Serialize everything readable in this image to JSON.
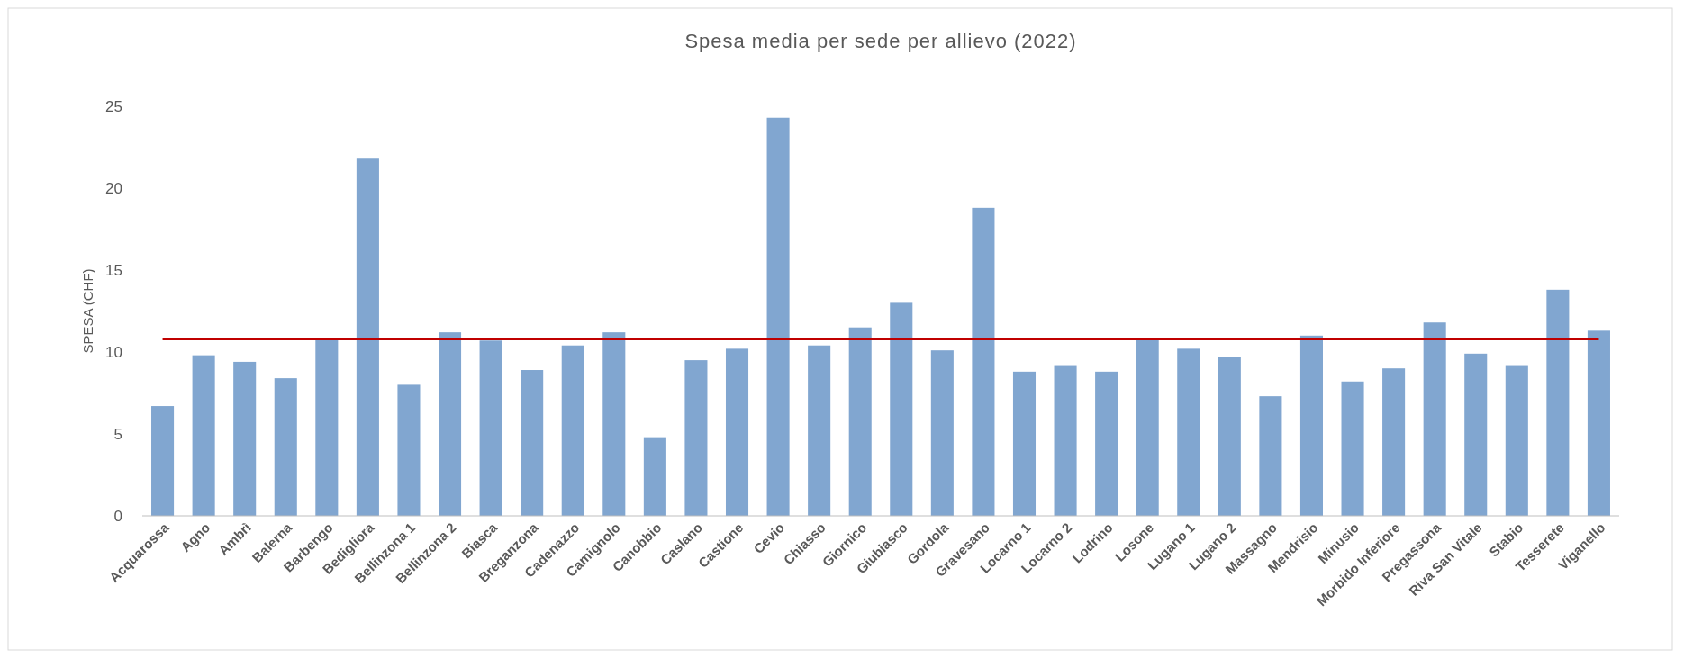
{
  "chart_data": {
    "type": "bar",
    "title": "Spesa media per sede per allievo (2022)",
    "ylabel": "SPESA (CHF)",
    "categories": [
      "Acquarossa",
      "Agno",
      "Ambrì",
      "Balerna",
      "Barbengo",
      "Bedigliora",
      "Bellinzona 1",
      "Bellinzona 2",
      "Biasca",
      "Breganzona",
      "Cadenazzo",
      "Camignolo",
      "Canobbio",
      "Caslano",
      "Castione",
      "Cevio",
      "Chiasso",
      "Giornico",
      "Giubiasco",
      "Gordola",
      "Gravesano",
      "Locarno 1",
      "Locarno 2",
      "Lodrino",
      "Losone",
      "Lugano 1",
      "Lugano 2",
      "Massagno",
      "Mendrisio",
      "Minusio",
      "Morbido Inferiore",
      "Pregassona",
      "Riva San Vitale",
      "Stabio",
      "Tesserete",
      "Viganello"
    ],
    "values": [
      6.7,
      9.8,
      9.4,
      8.4,
      10.8,
      21.8,
      8.0,
      11.2,
      10.7,
      8.9,
      10.4,
      11.2,
      4.8,
      9.5,
      10.2,
      24.3,
      10.4,
      11.5,
      13.0,
      10.1,
      18.8,
      8.8,
      9.2,
      8.8,
      10.8,
      10.2,
      9.7,
      7.3,
      11.0,
      8.2,
      9.0,
      11.8,
      9.9,
      9.2,
      13.8,
      11.3
    ],
    "color": "#81a6d0",
    "ylim": [
      0,
      25
    ],
    "yticks": [
      0,
      5,
      10,
      15,
      20,
      25
    ],
    "grid": false,
    "ref_lines": [
      {
        "axis": "y",
        "value": 10.8,
        "color": "#c00000",
        "line_style": "solid"
      }
    ]
  }
}
